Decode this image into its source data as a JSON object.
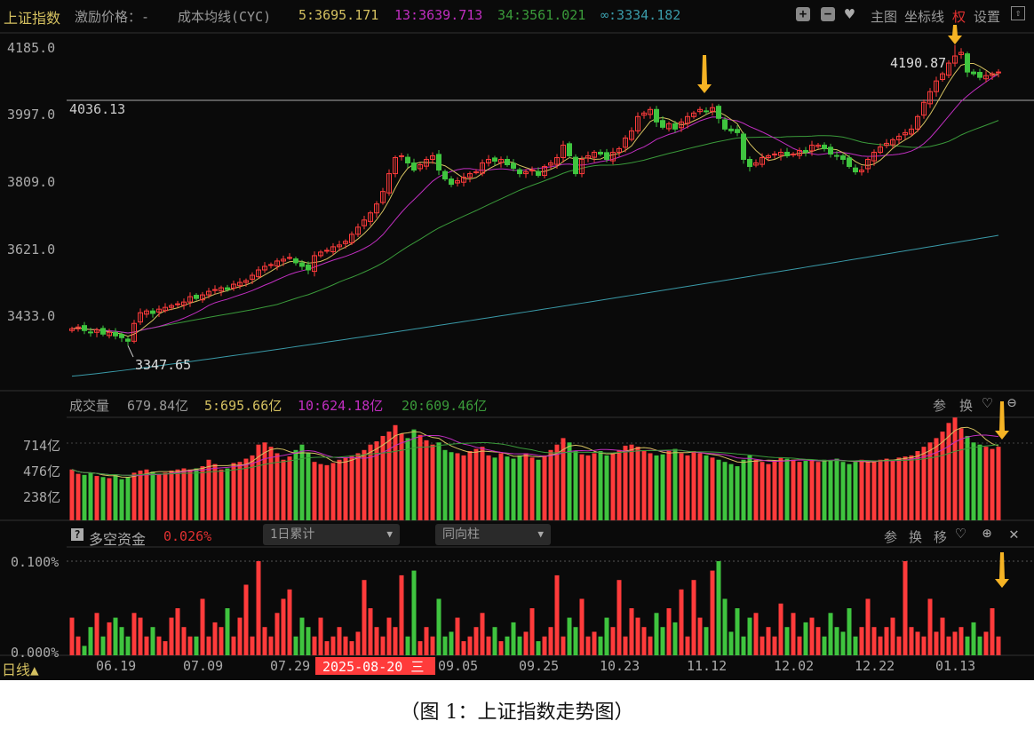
{
  "header": {
    "index_name": "上证指数",
    "incentive_price": "激励价格：-",
    "cost_line_label": "成本均线(CYC)",
    "ma5": "5:3695.171",
    "ma13": "13:3639.713",
    "ma34": "34:3561.021",
    "ma_inf": "∞:3334.182",
    "buttons": {
      "zoom_in": "+",
      "zoom_out": "−",
      "main_chart": "主图",
      "axis_line": "坐标线",
      "rights": "权",
      "settings": "设置"
    }
  },
  "colors": {
    "up": "#ff3b3b",
    "down": "#3fc43f",
    "ma5": "#d4c060",
    "ma13": "#c02ec0",
    "ma34": "#3a9a3a",
    "ma_inf": "#3a9aa8",
    "arrow": "#f5b324"
  },
  "price_axis": {
    "ticks": [
      "4185.0",
      "3997.0",
      "3809.0",
      "3621.0",
      "3433.0"
    ],
    "tick_values": [
      4185,
      3997,
      3809,
      3621,
      3433
    ]
  },
  "annotations": {
    "hline_label": "4036.13",
    "hline_value": 4036.13,
    "high_label": "4190.87",
    "high_value": 4190.87,
    "high_index": 142,
    "low_label": "3347.65",
    "low_value": 3347.65,
    "low_index": 9
  },
  "volume_panel": {
    "title": "成交量",
    "value": "679.84亿",
    "ma5": "5:695.66亿",
    "ma10": "10:624.18亿",
    "ma20": "20:609.46亿",
    "ticks": [
      "714亿",
      "476亿",
      "238亿"
    ],
    "tick_values": [
      714,
      476,
      238
    ],
    "tools": [
      "参",
      "换"
    ]
  },
  "fund_panel": {
    "help": "?",
    "title": "多空资金",
    "value": "0.026%",
    "select1": "1日累计",
    "select2": "同向柱",
    "ticks": [
      "0.100%",
      "0.000%"
    ],
    "tick_values": [
      0.1,
      0
    ],
    "tools": [
      "参",
      "换",
      "移"
    ]
  },
  "x_axis": {
    "period": "日线▲",
    "cursor_label": "2025-08-20 三",
    "ticks": [
      {
        "label": "06.19",
        "index": 7
      },
      {
        "label": "07.09",
        "index": 21
      },
      {
        "label": "07.29",
        "index": 35
      },
      {
        "label": "09.05",
        "index": 62
      },
      {
        "label": "09.25",
        "index": 75
      },
      {
        "label": "10.23",
        "index": 88
      },
      {
        "label": "11.12",
        "index": 102
      },
      {
        "label": "12.02",
        "index": 116
      },
      {
        "label": "12.22",
        "index": 129
      },
      {
        "label": "01.13",
        "index": 142
      }
    ]
  },
  "caption": "（图 1：上证指数走势图）",
  "chart_data": {
    "type": "candlestick",
    "close": [
      3395,
      3400,
      3390,
      3385,
      3392,
      3380,
      3385,
      3375,
      3370,
      3360,
      3410,
      3440,
      3445,
      3438,
      3450,
      3455,
      3460,
      3465,
      3470,
      3485,
      3480,
      3490,
      3500,
      3505,
      3510,
      3505,
      3520,
      3525,
      3530,
      3545,
      3560,
      3570,
      3575,
      3585,
      3590,
      3595,
      3580,
      3570,
      3560,
      3600,
      3610,
      3615,
      3625,
      3630,
      3640,
      3660,
      3680,
      3700,
      3720,
      3745,
      3780,
      3830,
      3875,
      3880,
      3860,
      3840,
      3855,
      3870,
      3880,
      3840,
      3815,
      3800,
      3810,
      3820,
      3830,
      3835,
      3860,
      3870,
      3865,
      3870,
      3855,
      3845,
      3830,
      3835,
      3840,
      3825,
      3850,
      3860,
      3875,
      3910,
      3880,
      3830,
      3870,
      3880,
      3890,
      3885,
      3870,
      3890,
      3900,
      3930,
      3950,
      3990,
      4000,
      4010,
      3975,
      3960,
      3970,
      3955,
      3975,
      3990,
      4000,
      4010,
      4005,
      4015,
      3985,
      3955,
      3950,
      3945,
      3870,
      3850,
      3860,
      3875,
      3880,
      3885,
      3890,
      3880,
      3885,
      3895,
      3890,
      3910,
      3910,
      3900,
      3885,
      3880,
      3870,
      3850,
      3835,
      3840,
      3870,
      3890,
      3905,
      3915,
      3925,
      3935,
      3945,
      3955,
      3990,
      4030,
      4060,
      4090,
      4110,
      4140,
      4160,
      4170,
      4115,
      4110,
      4100,
      4105,
      4110,
      4115
    ],
    "volume": [
      470,
      430,
      420,
      440,
      410,
      400,
      390,
      420,
      380,
      400,
      440,
      460,
      470,
      450,
      430,
      440,
      460,
      470,
      480,
      470,
      480,
      500,
      560,
      520,
      470,
      480,
      530,
      540,
      570,
      600,
      700,
      720,
      680,
      620,
      560,
      590,
      650,
      700,
      620,
      540,
      520,
      510,
      530,
      560,
      580,
      600,
      620,
      650,
      700,
      730,
      780,
      820,
      880,
      800,
      760,
      840,
      790,
      740,
      700,
      720,
      650,
      630,
      620,
      600,
      640,
      660,
      680,
      600,
      580,
      620,
      590,
      570,
      600,
      620,
      580,
      560,
      600,
      650,
      700,
      760,
      720,
      640,
      610,
      600,
      620,
      640,
      600,
      620,
      650,
      690,
      700,
      680,
      640,
      620,
      600,
      610,
      640,
      660,
      620,
      600,
      640,
      620,
      600,
      580,
      560,
      540,
      520,
      500,
      560,
      600,
      560,
      540,
      520,
      550,
      580,
      570,
      560,
      540,
      550,
      560,
      540,
      560,
      550,
      570,
      540,
      520,
      540,
      560,
      540,
      550,
      560,
      570,
      560,
      580,
      590,
      600,
      640,
      680,
      720,
      760,
      820,
      900,
      950,
      850,
      780,
      720,
      700,
      680,
      660,
      680
    ],
    "fund_pct": [
      0.04,
      0.02,
      0.01,
      0.03,
      0.045,
      0.02,
      0.035,
      0.04,
      0.03,
      0.02,
      0.045,
      0.04,
      0.02,
      0.03,
      0.02,
      0.015,
      0.04,
      0.05,
      0.03,
      0.02,
      0.02,
      0.06,
      0.02,
      0.035,
      0.03,
      0.05,
      0.02,
      0.04,
      0.075,
      0.02,
      0.1,
      0.03,
      0.02,
      0.045,
      0.06,
      0.07,
      0.02,
      0.04,
      0.03,
      0.02,
      0.04,
      0.015,
      0.02,
      0.03,
      0.02,
      0.015,
      0.025,
      0.08,
      0.05,
      0.03,
      0.02,
      0.04,
      0.03,
      0.085,
      0.02,
      0.09,
      0.015,
      0.03,
      0.02,
      0.06,
      0.02,
      0.025,
      0.04,
      0.015,
      0.02,
      0.03,
      0.045,
      0.02,
      0.03,
      0.015,
      0.02,
      0.035,
      0.02,
      0.025,
      0.05,
      0.015,
      0.02,
      0.03,
      0.085,
      0.02,
      0.04,
      0.03,
      0.06,
      0.02,
      0.025,
      0.02,
      0.04,
      0.03,
      0.08,
      0.02,
      0.05,
      0.04,
      0.03,
      0.02,
      0.045,
      0.03,
      0.05,
      0.035,
      0.07,
      0.02,
      0.08,
      0.04,
      0.03,
      0.09,
      0.1,
      0.06,
      0.025,
      0.05,
      0.02,
      0.04,
      0.045,
      0.02,
      0.03,
      0.02,
      0.055,
      0.03,
      0.045,
      0.02,
      0.035,
      0.04,
      0.03,
      0.02,
      0.045,
      0.03,
      0.025,
      0.05,
      0.02,
      0.03,
      0.06,
      0.03,
      0.02,
      0.03,
      0.04,
      0.02,
      0.1,
      0.03,
      0.025,
      0.02,
      0.06,
      0.025,
      0.04,
      0.02,
      0.025,
      0.03,
      0.02,
      0.035,
      0.02,
      0.025,
      0.05,
      0.02
    ],
    "cost_line": {
      "start": 3262,
      "end": 3657
    },
    "price_range": [
      3250,
      4215
    ],
    "volume_range": [
      0,
      950
    ],
    "fund_range": [
      0,
      0.105
    ]
  }
}
